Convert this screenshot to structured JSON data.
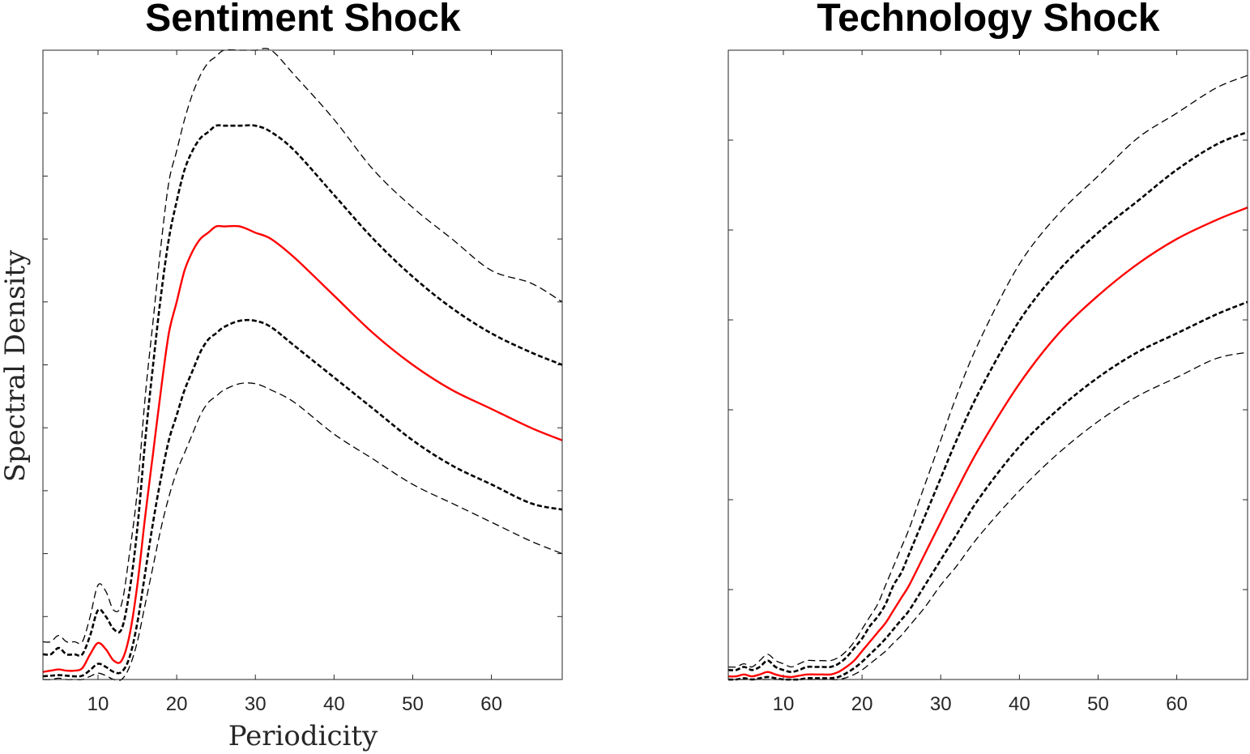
{
  "chart_data": [
    {
      "type": "line",
      "title": "Sentiment Shock",
      "xlabel": "Periodicity",
      "ylabel": "Spectral Density",
      "xlim": [
        3,
        69
      ],
      "ylim": [
        0,
        1
      ],
      "xticks": [
        10,
        20,
        30,
        40,
        50,
        60
      ],
      "ytick_count": 11,
      "y_tick_labels_shown": false,
      "grid": false,
      "series": [
        {
          "style": "thin-dashed",
          "color": "#000000",
          "x": [
            3,
            4,
            5,
            6,
            7,
            8,
            9,
            10,
            11,
            12,
            13,
            14,
            15,
            16,
            17,
            18,
            19,
            20,
            21,
            22,
            23,
            24,
            25,
            26,
            28,
            30,
            32,
            35,
            40,
            45,
            50,
            55,
            60,
            65,
            69
          ],
          "y": [
            0.06,
            0.06,
            0.07,
            0.06,
            0.06,
            0.06,
            0.1,
            0.15,
            0.14,
            0.11,
            0.12,
            0.2,
            0.3,
            0.45,
            0.57,
            0.69,
            0.79,
            0.84,
            0.89,
            0.93,
            0.96,
            0.98,
            0.99,
            1.0,
            1.0,
            1.0,
            1.0,
            0.96,
            0.89,
            0.81,
            0.75,
            0.7,
            0.65,
            0.63,
            0.6
          ]
        },
        {
          "style": "thick-dashed",
          "color": "#000000",
          "x": [
            3,
            4,
            5,
            6,
            7,
            8,
            9,
            10,
            11,
            12,
            13,
            14,
            15,
            16,
            17,
            18,
            19,
            20,
            21,
            22,
            23,
            24,
            25,
            26,
            28,
            30,
            32,
            35,
            40,
            45,
            50,
            55,
            60,
            65,
            69
          ],
          "y": [
            0.04,
            0.04,
            0.05,
            0.04,
            0.04,
            0.04,
            0.07,
            0.11,
            0.1,
            0.08,
            0.08,
            0.14,
            0.24,
            0.38,
            0.5,
            0.61,
            0.7,
            0.76,
            0.81,
            0.84,
            0.86,
            0.87,
            0.88,
            0.88,
            0.88,
            0.88,
            0.87,
            0.84,
            0.77,
            0.7,
            0.64,
            0.59,
            0.55,
            0.52,
            0.5
          ]
        },
        {
          "style": "solid",
          "color": "#ff0000",
          "x": [
            3,
            4,
            5,
            6,
            7,
            8,
            9,
            10,
            11,
            12,
            13,
            14,
            15,
            16,
            17,
            18,
            19,
            20,
            21,
            22,
            23,
            24,
            25,
            26,
            28,
            30,
            32,
            35,
            40,
            45,
            50,
            55,
            60,
            65,
            69
          ],
          "y": [
            0.012,
            0.014,
            0.016,
            0.014,
            0.014,
            0.018,
            0.04,
            0.058,
            0.048,
            0.03,
            0.03,
            0.07,
            0.15,
            0.26,
            0.36,
            0.46,
            0.55,
            0.6,
            0.65,
            0.68,
            0.7,
            0.71,
            0.72,
            0.72,
            0.72,
            0.71,
            0.7,
            0.67,
            0.61,
            0.55,
            0.5,
            0.46,
            0.43,
            0.4,
            0.38
          ]
        },
        {
          "style": "thick-dashed",
          "color": "#000000",
          "x": [
            3,
            4,
            5,
            6,
            7,
            8,
            9,
            10,
            11,
            12,
            13,
            14,
            15,
            16,
            17,
            18,
            19,
            20,
            21,
            22,
            23,
            24,
            25,
            26,
            28,
            30,
            32,
            35,
            40,
            45,
            50,
            55,
            60,
            65,
            69
          ],
          "y": [
            0.005,
            0.006,
            0.007,
            0.006,
            0.005,
            0.006,
            0.015,
            0.025,
            0.02,
            0.012,
            0.012,
            0.035,
            0.09,
            0.17,
            0.25,
            0.32,
            0.38,
            0.42,
            0.46,
            0.49,
            0.52,
            0.54,
            0.55,
            0.56,
            0.57,
            0.57,
            0.56,
            0.53,
            0.48,
            0.43,
            0.38,
            0.34,
            0.31,
            0.28,
            0.27
          ]
        },
        {
          "style": "thin-dashed",
          "color": "#000000",
          "x": [
            3,
            4,
            5,
            6,
            7,
            8,
            9,
            10,
            11,
            12,
            13,
            14,
            15,
            16,
            17,
            18,
            19,
            20,
            21,
            22,
            23,
            24,
            25,
            26,
            28,
            30,
            32,
            35,
            40,
            45,
            50,
            55,
            60,
            65,
            69
          ],
          "y": [
            0.0,
            0.0,
            0.002,
            0.0,
            0.0,
            0.0,
            0.005,
            0.01,
            0.006,
            0.0,
            0.0,
            0.02,
            0.06,
            0.12,
            0.18,
            0.24,
            0.29,
            0.33,
            0.36,
            0.39,
            0.42,
            0.44,
            0.45,
            0.46,
            0.47,
            0.47,
            0.46,
            0.44,
            0.39,
            0.35,
            0.31,
            0.28,
            0.25,
            0.22,
            0.2
          ]
        }
      ]
    },
    {
      "type": "line",
      "title": "Technology Shock",
      "xlabel": "",
      "ylabel": "",
      "xlim": [
        3,
        69
      ],
      "ylim": [
        0,
        1
      ],
      "xticks": [
        10,
        20,
        30,
        40,
        50,
        60
      ],
      "ytick_count": 8,
      "y_tick_labels_shown": false,
      "grid": false,
      "series": [
        {
          "style": "thin-dashed",
          "color": "#000000",
          "x": [
            3,
            4,
            5,
            6,
            7,
            8,
            9,
            10,
            11,
            12,
            13,
            14,
            15,
            16,
            17,
            18,
            19,
            20,
            21,
            22,
            23,
            24,
            25,
            26,
            28,
            30,
            32,
            35,
            40,
            45,
            50,
            55,
            60,
            65,
            69
          ],
          "y": [
            0.02,
            0.02,
            0.025,
            0.02,
            0.03,
            0.04,
            0.03,
            0.025,
            0.02,
            0.025,
            0.03,
            0.03,
            0.03,
            0.03,
            0.035,
            0.045,
            0.06,
            0.08,
            0.1,
            0.12,
            0.15,
            0.18,
            0.21,
            0.24,
            0.31,
            0.38,
            0.45,
            0.54,
            0.66,
            0.74,
            0.8,
            0.86,
            0.9,
            0.94,
            0.96
          ]
        },
        {
          "style": "thick-dashed",
          "color": "#000000",
          "x": [
            3,
            4,
            5,
            6,
            7,
            8,
            9,
            10,
            11,
            12,
            13,
            14,
            15,
            16,
            17,
            18,
            19,
            20,
            21,
            22,
            23,
            24,
            25,
            26,
            28,
            30,
            32,
            35,
            40,
            45,
            50,
            55,
            60,
            65,
            69
          ],
          "y": [
            0.015,
            0.015,
            0.02,
            0.015,
            0.02,
            0.03,
            0.02,
            0.015,
            0.012,
            0.015,
            0.02,
            0.02,
            0.02,
            0.02,
            0.025,
            0.035,
            0.05,
            0.065,
            0.085,
            0.1,
            0.12,
            0.15,
            0.17,
            0.2,
            0.26,
            0.32,
            0.38,
            0.46,
            0.57,
            0.65,
            0.71,
            0.76,
            0.81,
            0.85,
            0.87
          ]
        },
        {
          "style": "solid",
          "color": "#ff0000",
          "x": [
            3,
            4,
            5,
            6,
            7,
            8,
            9,
            10,
            11,
            12,
            13,
            14,
            15,
            16,
            17,
            18,
            19,
            20,
            21,
            22,
            23,
            24,
            25,
            26,
            28,
            30,
            32,
            35,
            40,
            45,
            50,
            55,
            60,
            65,
            69
          ],
          "y": [
            0.005,
            0.005,
            0.008,
            0.005,
            0.008,
            0.012,
            0.008,
            0.005,
            0.004,
            0.006,
            0.008,
            0.008,
            0.008,
            0.008,
            0.012,
            0.02,
            0.03,
            0.045,
            0.06,
            0.075,
            0.09,
            0.11,
            0.13,
            0.15,
            0.2,
            0.25,
            0.3,
            0.37,
            0.47,
            0.55,
            0.61,
            0.66,
            0.7,
            0.73,
            0.75
          ]
        },
        {
          "style": "thick-dashed",
          "color": "#000000",
          "x": [
            3,
            4,
            5,
            6,
            7,
            8,
            9,
            10,
            11,
            12,
            13,
            14,
            15,
            16,
            17,
            18,
            19,
            20,
            21,
            22,
            23,
            24,
            25,
            26,
            28,
            30,
            32,
            35,
            40,
            45,
            50,
            55,
            60,
            65,
            69
          ],
          "y": [
            0.0,
            0.0,
            0.002,
            0.0,
            0.002,
            0.004,
            0.002,
            0.0,
            0.0,
            0.0,
            0.002,
            0.002,
            0.002,
            0.002,
            0.004,
            0.01,
            0.018,
            0.028,
            0.04,
            0.052,
            0.065,
            0.08,
            0.095,
            0.11,
            0.15,
            0.19,
            0.23,
            0.29,
            0.37,
            0.43,
            0.48,
            0.52,
            0.55,
            0.58,
            0.6
          ]
        },
        {
          "style": "thin-dashed",
          "color": "#000000",
          "x": [
            3,
            4,
            5,
            6,
            7,
            8,
            9,
            10,
            11,
            12,
            13,
            14,
            15,
            16,
            17,
            18,
            19,
            20,
            21,
            22,
            23,
            24,
            25,
            26,
            28,
            30,
            32,
            35,
            40,
            45,
            50,
            55,
            60,
            65,
            69
          ],
          "y": [
            0.0,
            0.0,
            0.0,
            0.0,
            0.0,
            0.0,
            0.0,
            0.0,
            0.0,
            0.0,
            0.0,
            0.0,
            0.0,
            0.0,
            0.0,
            0.003,
            0.008,
            0.015,
            0.025,
            0.035,
            0.045,
            0.058,
            0.07,
            0.085,
            0.115,
            0.15,
            0.18,
            0.23,
            0.3,
            0.36,
            0.41,
            0.45,
            0.48,
            0.51,
            0.52
          ]
        }
      ]
    }
  ]
}
